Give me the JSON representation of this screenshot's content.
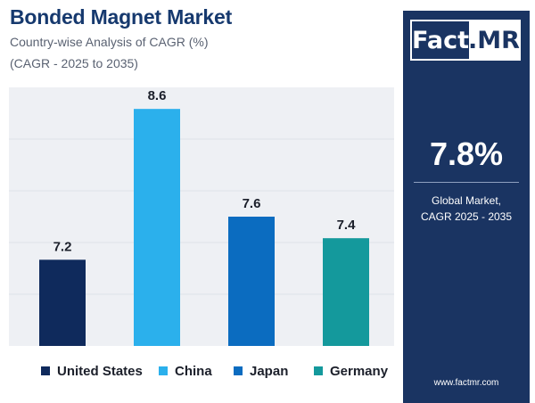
{
  "header": {
    "title": "Bonded Magnet Market",
    "subtitle": "Country-wise Analysis of CAGR (%)",
    "subtitle2": "(CAGR - 2025 to 2035)"
  },
  "side_panel": {
    "logo_part1": "Fact",
    "logo_part2": ".MR",
    "kpi_value": "7.8%",
    "kpi_label_line1": "Global Market,",
    "kpi_label_line2": "CAGR 2025 - 2035",
    "website": "www.factmr.com",
    "background_color": "#1a3462"
  },
  "chart_data": {
    "type": "bar",
    "categories": [
      "United States",
      "China",
      "Japan",
      "Germany"
    ],
    "values": [
      7.2,
      8.6,
      7.6,
      7.4
    ],
    "data_labels": [
      "7.2",
      "8.6",
      "7.6",
      "7.4"
    ],
    "colors": [
      "#0f2a5c",
      "#2bb0ec",
      "#0b6cc0",
      "#14999c"
    ],
    "ylim": [
      6.4,
      8.8
    ],
    "grid": true,
    "legend_position": "bottom"
  }
}
